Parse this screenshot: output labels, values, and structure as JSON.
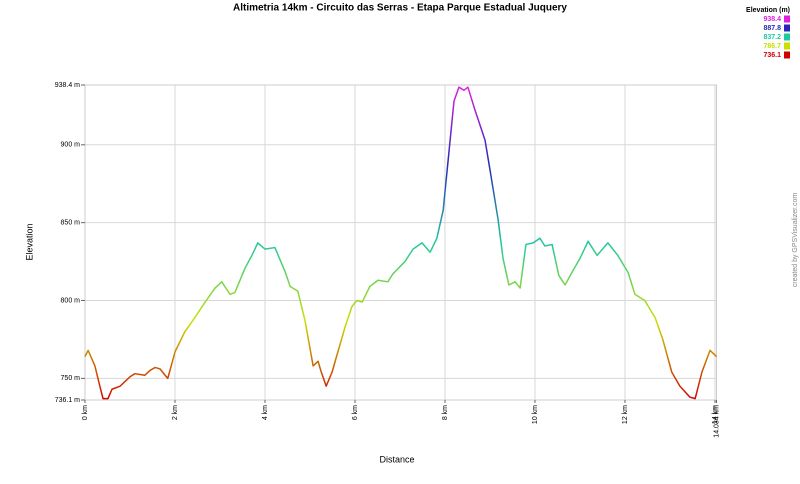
{
  "chart_data": {
    "type": "line",
    "title": "Altimetria 14km - Circuito das Serras - Etapa Parque Estadual Juquery",
    "x_label": "Distance",
    "y_label": "Elevation",
    "credit": "created by GPSVisualizer.com",
    "legend_title": "Elevation (m)",
    "color_scale": [
      {
        "value": 938.4,
        "color": "#e020e0"
      },
      {
        "value": 887.8,
        "color": "#2828b8"
      },
      {
        "value": 837.2,
        "color": "#20c8a0"
      },
      {
        "value": 786.7,
        "color": "#c8e000"
      },
      {
        "value": 736.1,
        "color": "#d00000"
      }
    ],
    "grid": true,
    "xlim": [
      0,
      14.034
    ],
    "ylim": [
      736.1,
      938.4
    ],
    "xticks": [
      {
        "value": 0,
        "label": "0 km"
      },
      {
        "value": 2,
        "label": "2 km"
      },
      {
        "value": 4,
        "label": "4 km"
      },
      {
        "value": 6,
        "label": "6 km"
      },
      {
        "value": 8,
        "label": "8 km"
      },
      {
        "value": 10,
        "label": "10 km"
      },
      {
        "value": 12,
        "label": "12 km"
      },
      {
        "value": 14,
        "label": "14 km"
      },
      {
        "value": 14.034,
        "label": "14.034 km"
      }
    ],
    "yticks": [
      {
        "value": 736.1,
        "label": "736.1 m"
      },
      {
        "value": 750,
        "label": "750 m"
      },
      {
        "value": 800,
        "label": "800 m"
      },
      {
        "value": 850,
        "label": "850 m"
      },
      {
        "value": 900,
        "label": "900 m"
      },
      {
        "value": 938.4,
        "label": "938.4 m"
      }
    ],
    "x": [
      0,
      0.07,
      0.22,
      0.33,
      0.4,
      0.51,
      0.6,
      0.78,
      1.0,
      1.11,
      1.33,
      1.44,
      1.56,
      1.67,
      1.78,
      1.84,
      2.0,
      2.22,
      2.44,
      2.67,
      2.89,
      3.04,
      3.22,
      3.33,
      3.56,
      3.71,
      3.84,
      4.0,
      4.22,
      4.44,
      4.56,
      4.73,
      4.89,
      5.07,
      5.18,
      5.24,
      5.36,
      5.49,
      5.62,
      5.78,
      5.93,
      6.04,
      6.16,
      6.33,
      6.51,
      6.73,
      6.84,
      7.11,
      7.29,
      7.49,
      7.67,
      7.82,
      7.96,
      8.07,
      8.2,
      8.31,
      8.42,
      8.51,
      8.67,
      8.89,
      9.0,
      9.18,
      9.29,
      9.42,
      9.56,
      9.67,
      9.8,
      9.96,
      10.11,
      10.22,
      10.38,
      10.53,
      10.67,
      10.84,
      11.0,
      11.18,
      11.38,
      11.62,
      11.84,
      12.07,
      12.22,
      12.44,
      12.67,
      12.84,
      13.04,
      13.22,
      13.44,
      13.56,
      13.71,
      13.89,
      14.034
    ],
    "values": [
      764,
      768,
      758,
      745,
      737,
      737,
      743,
      745,
      751,
      753,
      752,
      755,
      757,
      756,
      752,
      750,
      767,
      780,
      789,
      799,
      808,
      812,
      804,
      805,
      821,
      829,
      837,
      833,
      834,
      819,
      809,
      806,
      787,
      758,
      761,
      755,
      745,
      754,
      767,
      783,
      796,
      800,
      799,
      809,
      813,
      812,
      817,
      825,
      833,
      837,
      831,
      840,
      858,
      890,
      928,
      937,
      935,
      937,
      922,
      903,
      884,
      852,
      827,
      810,
      812,
      808,
      836,
      837,
      840,
      835,
      836,
      816,
      810,
      819,
      827,
      838,
      829,
      837,
      829,
      818,
      804,
      800,
      789,
      775,
      754,
      745,
      738,
      737,
      754,
      768,
      764
    ]
  }
}
